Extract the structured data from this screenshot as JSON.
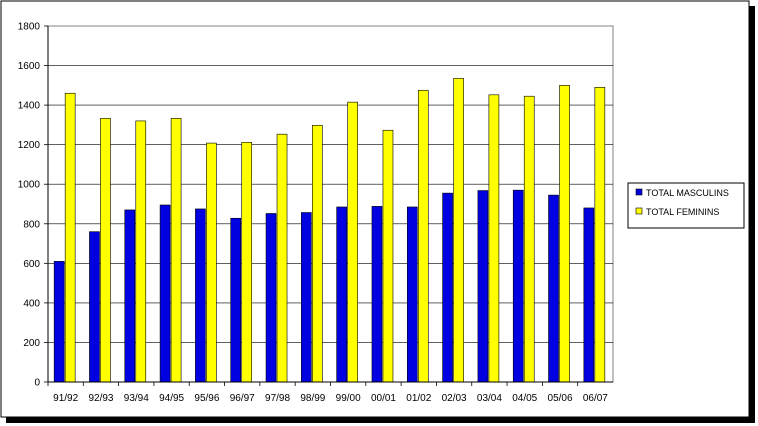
{
  "chart_data": {
    "type": "bar",
    "title": "",
    "xlabel": "",
    "ylabel": "",
    "categories": [
      "91/92",
      "92/93",
      "93/94",
      "94/95",
      "95/96",
      "96/97",
      "97/98",
      "98/99",
      "99/00",
      "00/01",
      "01/02",
      "02/03",
      "03/04",
      "04/05",
      "05/06",
      "06/07"
    ],
    "series": [
      {
        "name": "TOTAL MASCULINS",
        "color": "#0000e0",
        "values": [
          610,
          760,
          870,
          895,
          875,
          828,
          852,
          857,
          885,
          888,
          885,
          955,
          968,
          970,
          945,
          880
        ]
      },
      {
        "name": "TOTAL FEMININS",
        "color": "#ffff00",
        "values": [
          1460,
          1333,
          1320,
          1333,
          1208,
          1212,
          1253,
          1298,
          1415,
          1273,
          1475,
          1535,
          1452,
          1445,
          1500,
          1490
        ]
      }
    ],
    "ylim": [
      0,
      1800
    ],
    "yticks": [
      0,
      200,
      400,
      600,
      800,
      1000,
      1200,
      1400,
      1600,
      1800
    ],
    "grid": true,
    "legend_position": "right"
  }
}
